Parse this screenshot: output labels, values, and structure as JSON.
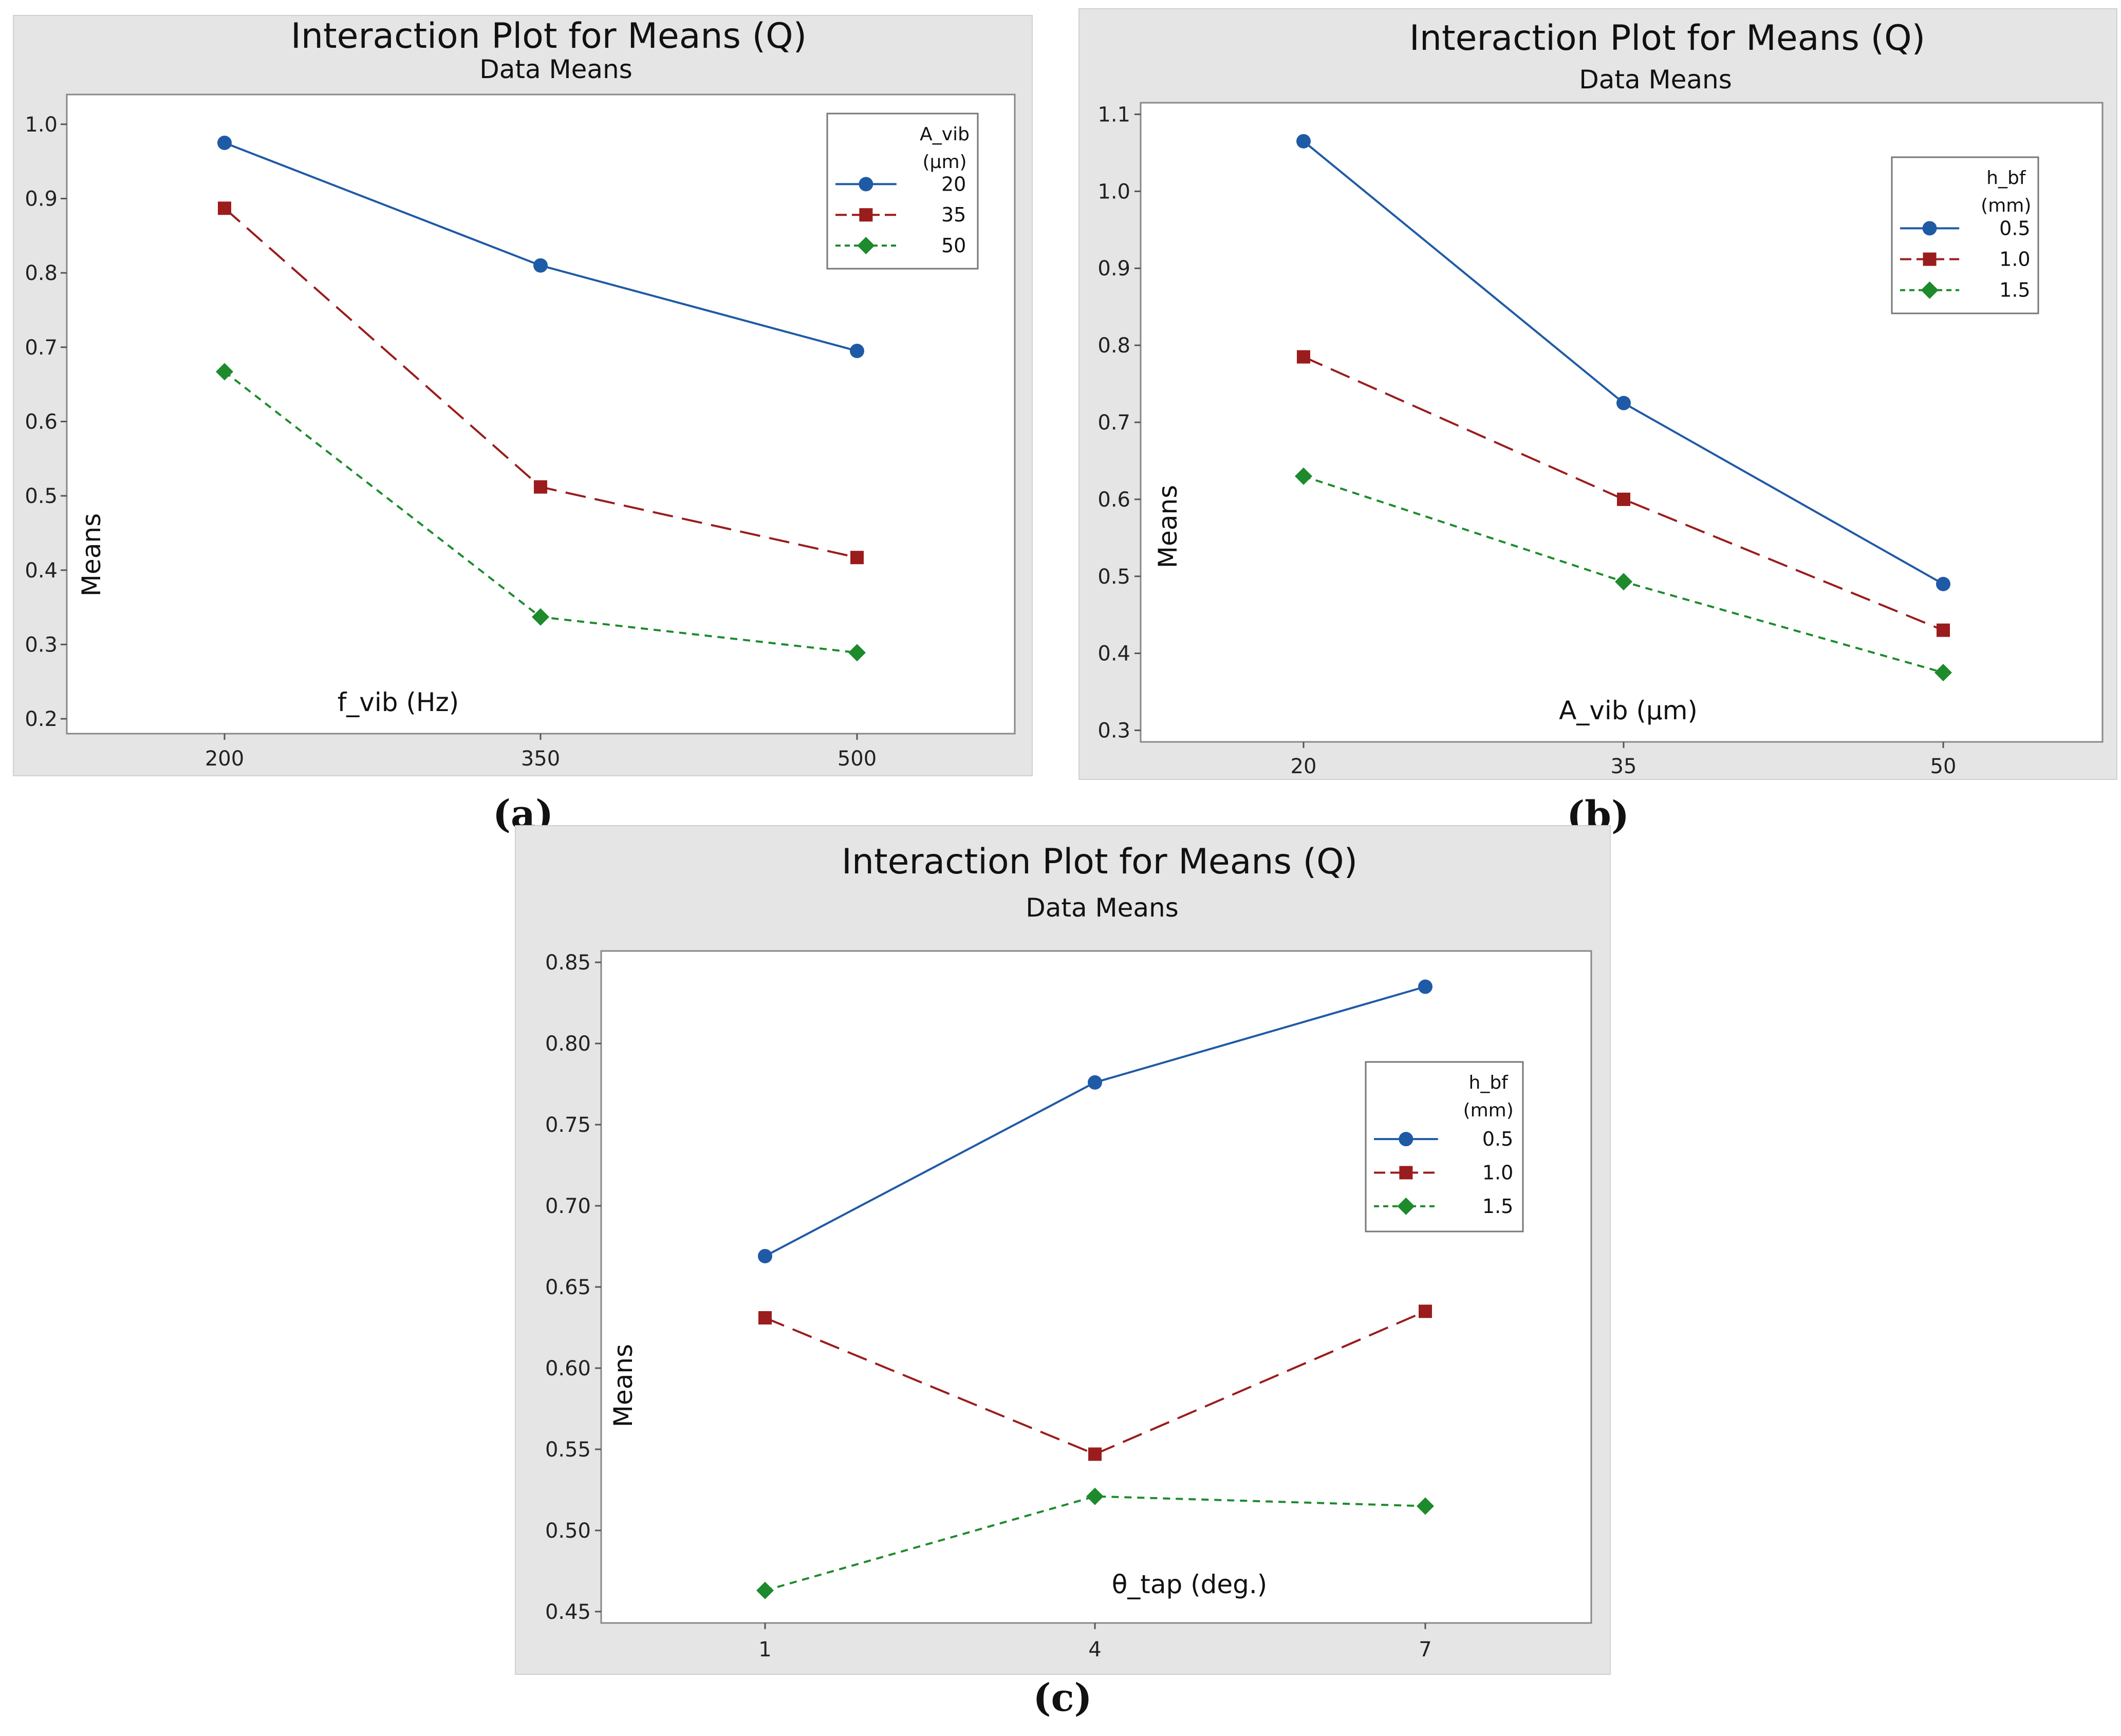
{
  "colors": {
    "panel_bg": "#e5e5e5",
    "plot_bg": "#ffffff",
    "frame": "#888888",
    "series": [
      "#1f5aa6",
      "#9b1c1c",
      "#1d8a2c"
    ]
  },
  "chart_data": [
    {
      "panel_label": "(a)",
      "type": "line",
      "title": "Interaction Plot for Means (Q)",
      "subtitle": "Data Means",
      "xlabel": "f_vib (Hz)",
      "ylabel": "Means",
      "categories": [
        "200",
        "350",
        "500"
      ],
      "ylim": [
        0.18,
        1.04
      ],
      "yticks": [
        0.2,
        0.3,
        0.4,
        0.5,
        0.6,
        0.7,
        0.8,
        0.9,
        1.0
      ],
      "ytick_decimals": 1,
      "legend_title": [
        "A_vib",
        "(µm)"
      ],
      "legend_position": "top-right",
      "series": [
        {
          "name": "20",
          "values": [
            0.975,
            0.81,
            0.695
          ],
          "marker": "circle",
          "dash": "solid"
        },
        {
          "name": "35",
          "values": [
            0.887,
            0.512,
            0.417
          ],
          "marker": "square",
          "dash": "long-dash"
        },
        {
          "name": "50",
          "values": [
            0.667,
            0.337,
            0.289
          ],
          "marker": "diamond",
          "dash": "short-dash"
        }
      ]
    },
    {
      "panel_label": "(b)",
      "type": "line",
      "title": "Interaction Plot for Means (Q)",
      "subtitle": "Data Means",
      "xlabel": "A_vib (µm)",
      "ylabel": "Means",
      "categories": [
        "20",
        "35",
        "50"
      ],
      "ylim": [
        0.285,
        1.115
      ],
      "yticks": [
        0.3,
        0.4,
        0.5,
        0.6,
        0.7,
        0.8,
        0.9,
        1.0,
        1.1
      ],
      "ytick_decimals": 1,
      "legend_title": [
        "h_bf",
        "(mm)"
      ],
      "legend_position": "top-right",
      "series": [
        {
          "name": "0.5",
          "values": [
            1.065,
            0.725,
            0.49
          ],
          "marker": "circle",
          "dash": "solid"
        },
        {
          "name": "1.0",
          "values": [
            0.785,
            0.6,
            0.43
          ],
          "marker": "square",
          "dash": "long-dash"
        },
        {
          "name": "1.5",
          "values": [
            0.63,
            0.493,
            0.375
          ],
          "marker": "diamond",
          "dash": "short-dash"
        }
      ]
    },
    {
      "panel_label": "(c)",
      "type": "line",
      "title": "Interaction Plot for Means (Q)",
      "subtitle": "Data Means",
      "xlabel": "θ_tap (deg.)",
      "ylabel": "Means",
      "categories": [
        "1",
        "4",
        "7"
      ],
      "ylim": [
        0.443,
        0.857
      ],
      "yticks": [
        0.45,
        0.5,
        0.55,
        0.6,
        0.65,
        0.7,
        0.75,
        0.8,
        0.85
      ],
      "ytick_decimals": 2,
      "legend_title": [
        "h_bf",
        "(mm)"
      ],
      "legend_position": "top-right",
      "series": [
        {
          "name": "0.5",
          "values": [
            0.669,
            0.776,
            0.835
          ],
          "marker": "circle",
          "dash": "solid"
        },
        {
          "name": "1.0",
          "values": [
            0.631,
            0.547,
            0.635
          ],
          "marker": "square",
          "dash": "long-dash"
        },
        {
          "name": "1.5",
          "values": [
            0.463,
            0.521,
            0.515
          ],
          "marker": "diamond",
          "dash": "short-dash"
        }
      ]
    }
  ]
}
